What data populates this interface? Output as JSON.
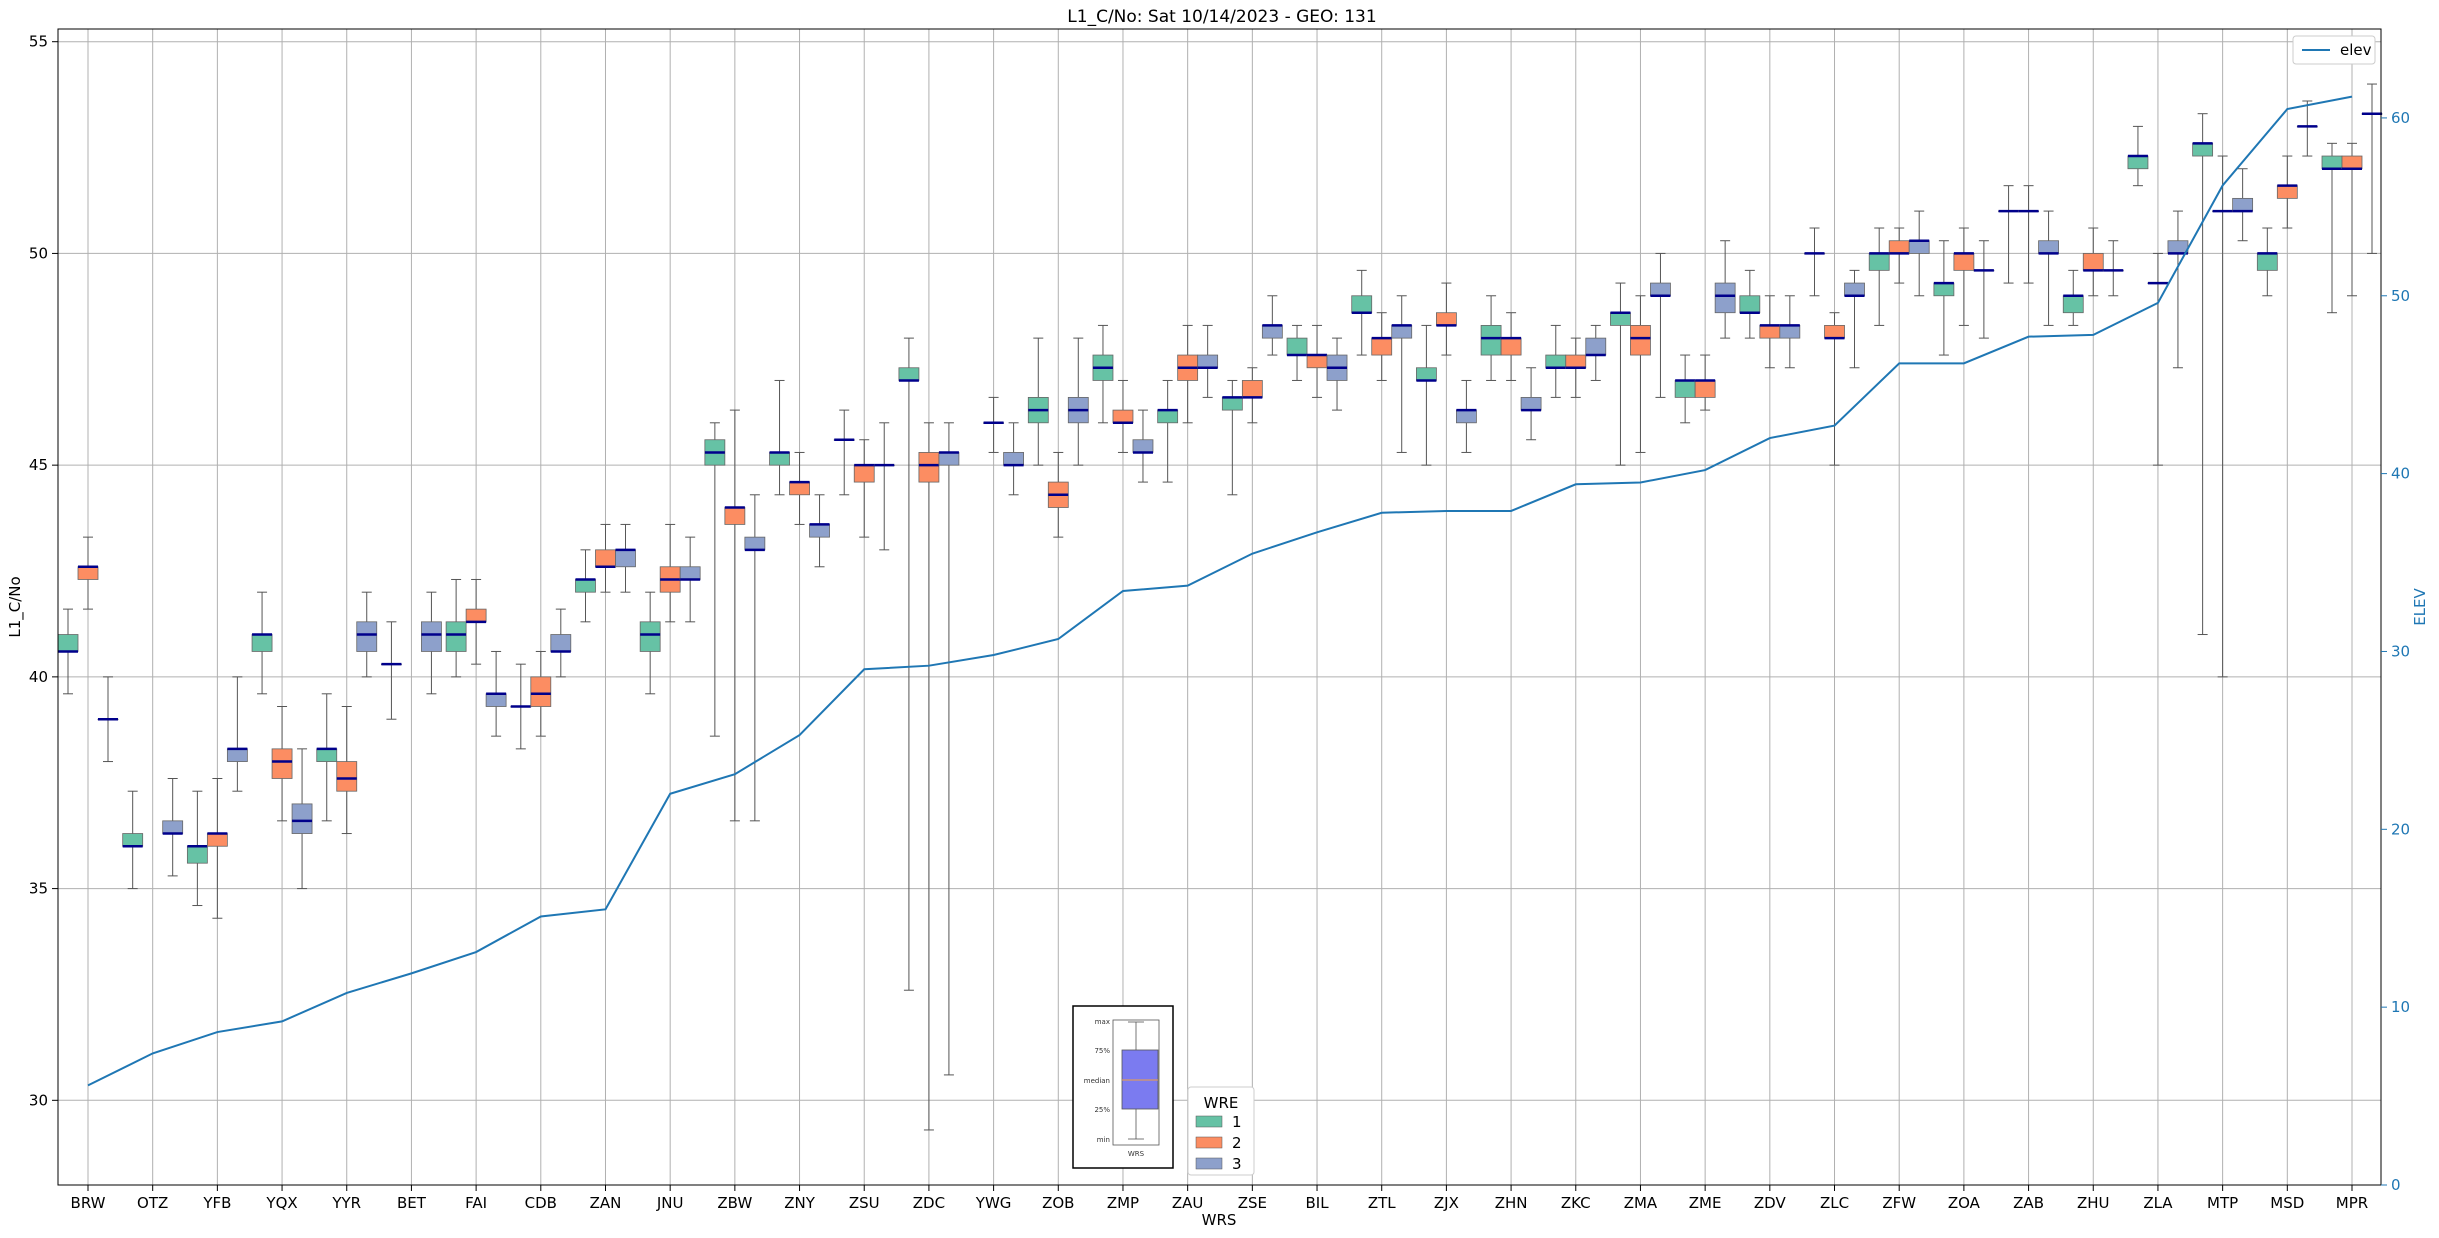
{
  "chart_data": {
    "type": "box",
    "title": "L1_C/No: Sat 10/14/2023 - GEO: 131",
    "xlabel": "WRS",
    "ylabel": "L1_C/No",
    "y2label": "ELEV",
    "ylim": [
      28,
      55.3
    ],
    "y2lim": [
      0,
      65
    ],
    "yticks": [
      30,
      35,
      40,
      45,
      50,
      55
    ],
    "y2ticks": [
      0,
      10,
      20,
      30,
      40,
      50,
      60
    ],
    "grid": true,
    "categories": [
      "BRW",
      "OTZ",
      "YFB",
      "YQX",
      "YYR",
      "BET",
      "FAI",
      "CDB",
      "ZAN",
      "JNU",
      "ZBW",
      "ZNY",
      "ZSU",
      "ZDC",
      "YWG",
      "ZOB",
      "ZMP",
      "ZAU",
      "ZSE",
      "BIL",
      "ZTL",
      "ZJX",
      "ZHN",
      "ZKC",
      "ZMA",
      "ZME",
      "ZDV",
      "ZLC",
      "ZFW",
      "ZOA",
      "ZAB",
      "ZHU",
      "ZLA",
      "MTP",
      "MSD",
      "MPR"
    ],
    "legend_wre": {
      "title": "WRE",
      "placement": "bottom-center",
      "entries": [
        {
          "label": "1",
          "color": "#66c2a5"
        },
        {
          "label": "2",
          "color": "#fc8d62"
        },
        {
          "label": "3",
          "color": "#8da0cb"
        }
      ]
    },
    "legend_elev": {
      "label": "elev",
      "color": "#1f77b4",
      "placement": "top-right"
    },
    "inset_key": {
      "labels": [
        "max",
        "75%",
        "median",
        "25%",
        "min"
      ],
      "xlabel": "WRS",
      "color": "#7b7bf0"
    },
    "boxes": [
      {
        "cat": "BRW",
        "wre": 1,
        "min": 39.6,
        "q1": 40.6,
        "med": 40.6,
        "q3": 41.0,
        "max": 41.6
      },
      {
        "cat": "BRW",
        "wre": 2,
        "min": 41.6,
        "q1": 42.3,
        "med": 42.6,
        "q3": 42.6,
        "max": 43.3
      },
      {
        "cat": "BRW",
        "wre": 3,
        "min": 38.0,
        "q1": 39.0,
        "med": 39.0,
        "q3": 39.0,
        "max": 40.0
      },
      {
        "cat": "OTZ",
        "wre": 1,
        "min": 35.0,
        "q1": 36.0,
        "med": 36.0,
        "q3": 36.3,
        "max": 37.3
      },
      {
        "cat": "OTZ",
        "wre": 3,
        "min": 35.3,
        "q1": 36.3,
        "med": 36.3,
        "q3": 36.6,
        "max": 37.6
      },
      {
        "cat": "YFB",
        "wre": 1,
        "min": 34.6,
        "q1": 35.6,
        "med": 36.0,
        "q3": 36.0,
        "max": 37.3
      },
      {
        "cat": "YFB",
        "wre": 2,
        "min": 34.3,
        "q1": 36.0,
        "med": 36.3,
        "q3": 36.3,
        "max": 37.6
      },
      {
        "cat": "YFB",
        "wre": 3,
        "min": 37.3,
        "q1": 38.0,
        "med": 38.3,
        "q3": 38.3,
        "max": 40.0
      },
      {
        "cat": "YQX",
        "wre": 1,
        "min": 39.6,
        "q1": 40.6,
        "med": 41.0,
        "q3": 41.0,
        "max": 42.0
      },
      {
        "cat": "YQX",
        "wre": 2,
        "min": 36.6,
        "q1": 37.6,
        "med": 38.0,
        "q3": 38.3,
        "max": 39.3
      },
      {
        "cat": "YQX",
        "wre": 3,
        "min": 35.0,
        "q1": 36.3,
        "med": 36.6,
        "q3": 37.0,
        "max": 38.3
      },
      {
        "cat": "YYR",
        "wre": 1,
        "min": 36.6,
        "q1": 38.0,
        "med": 38.3,
        "q3": 38.3,
        "max": 39.6
      },
      {
        "cat": "YYR",
        "wre": 2,
        "min": 36.3,
        "q1": 37.3,
        "med": 37.6,
        "q3": 38.0,
        "max": 39.3
      },
      {
        "cat": "YYR",
        "wre": 3,
        "min": 40.0,
        "q1": 40.6,
        "med": 41.0,
        "q3": 41.3,
        "max": 42.0
      },
      {
        "cat": "BET",
        "wre": 1,
        "min": 39.0,
        "q1": 40.3,
        "med": 40.3,
        "q3": 40.3,
        "max": 41.3
      },
      {
        "cat": "BET",
        "wre": 3,
        "min": 39.6,
        "q1": 40.6,
        "med": 41.0,
        "q3": 41.3,
        "max": 42.0
      },
      {
        "cat": "FAI",
        "wre": 1,
        "min": 40.0,
        "q1": 40.6,
        "med": 41.0,
        "q3": 41.3,
        "max": 42.3
      },
      {
        "cat": "FAI",
        "wre": 2,
        "min": 40.3,
        "q1": 41.3,
        "med": 41.3,
        "q3": 41.6,
        "max": 42.3
      },
      {
        "cat": "FAI",
        "wre": 3,
        "min": 38.6,
        "q1": 39.3,
        "med": 39.6,
        "q3": 39.6,
        "max": 40.6
      },
      {
        "cat": "CDB",
        "wre": 1,
        "min": 38.3,
        "q1": 39.3,
        "med": 39.3,
        "q3": 39.3,
        "max": 40.3
      },
      {
        "cat": "CDB",
        "wre": 2,
        "min": 38.6,
        "q1": 39.3,
        "med": 39.6,
        "q3": 40.0,
        "max": 40.6
      },
      {
        "cat": "CDB",
        "wre": 3,
        "min": 40.0,
        "q1": 40.6,
        "med": 40.6,
        "q3": 41.0,
        "max": 41.6
      },
      {
        "cat": "ZAN",
        "wre": 1,
        "min": 41.3,
        "q1": 42.0,
        "med": 42.3,
        "q3": 42.3,
        "max": 43.0
      },
      {
        "cat": "ZAN",
        "wre": 2,
        "min": 42.0,
        "q1": 42.6,
        "med": 42.6,
        "q3": 43.0,
        "max": 43.6
      },
      {
        "cat": "ZAN",
        "wre": 3,
        "min": 42.0,
        "q1": 42.6,
        "med": 43.0,
        "q3": 43.0,
        "max": 43.6
      },
      {
        "cat": "JNU",
        "wre": 1,
        "min": 39.6,
        "q1": 40.6,
        "med": 41.0,
        "q3": 41.3,
        "max": 42.0
      },
      {
        "cat": "JNU",
        "wre": 2,
        "min": 41.3,
        "q1": 42.0,
        "med": 42.3,
        "q3": 42.6,
        "max": 43.6
      },
      {
        "cat": "JNU",
        "wre": 3,
        "min": 41.3,
        "q1": 42.3,
        "med": 42.3,
        "q3": 42.6,
        "max": 43.3
      },
      {
        "cat": "ZBW",
        "wre": 1,
        "min": 38.6,
        "q1": 45.0,
        "med": 45.3,
        "q3": 45.6,
        "max": 46.0
      },
      {
        "cat": "ZBW",
        "wre": 2,
        "min": 36.6,
        "q1": 43.6,
        "med": 44.0,
        "q3": 44.0,
        "max": 46.3
      },
      {
        "cat": "ZBW",
        "wre": 3,
        "min": 36.6,
        "q1": 43.0,
        "med": 43.0,
        "q3": 43.3,
        "max": 44.3
      },
      {
        "cat": "ZNY",
        "wre": 1,
        "min": 44.3,
        "q1": 45.0,
        "med": 45.3,
        "q3": 45.3,
        "max": 47.0
      },
      {
        "cat": "ZNY",
        "wre": 2,
        "min": 43.6,
        "q1": 44.3,
        "med": 44.6,
        "q3": 44.6,
        "max": 45.3
      },
      {
        "cat": "ZNY",
        "wre": 3,
        "min": 42.6,
        "q1": 43.3,
        "med": 43.6,
        "q3": 43.6,
        "max": 44.3
      },
      {
        "cat": "ZSU",
        "wre": 1,
        "min": 44.3,
        "q1": 45.6,
        "med": 45.6,
        "q3": 45.6,
        "max": 46.3
      },
      {
        "cat": "ZSU",
        "wre": 2,
        "min": 43.3,
        "q1": 44.6,
        "med": 45.0,
        "q3": 45.0,
        "max": 45.6
      },
      {
        "cat": "ZSU",
        "wre": 3,
        "min": 43.0,
        "q1": 45.0,
        "med": 45.0,
        "q3": 45.0,
        "max": 46.0
      },
      {
        "cat": "ZDC",
        "wre": 1,
        "min": 32.6,
        "q1": 47.0,
        "med": 47.0,
        "q3": 47.3,
        "max": 48.0
      },
      {
        "cat": "ZDC",
        "wre": 2,
        "min": 29.3,
        "q1": 44.6,
        "med": 45.0,
        "q3": 45.3,
        "max": 46.0
      },
      {
        "cat": "ZDC",
        "wre": 3,
        "min": 30.6,
        "q1": 45.0,
        "med": 45.3,
        "q3": 45.3,
        "max": 46.0
      },
      {
        "cat": "YWG",
        "wre": 2,
        "min": 45.3,
        "q1": 46.0,
        "med": 46.0,
        "q3": 46.0,
        "max": 46.6
      },
      {
        "cat": "YWG",
        "wre": 3,
        "min": 44.3,
        "q1": 45.0,
        "med": 45.0,
        "q3": 45.3,
        "max": 46.0
      },
      {
        "cat": "ZOB",
        "wre": 1,
        "min": 45.0,
        "q1": 46.0,
        "med": 46.3,
        "q3": 46.6,
        "max": 48.0
      },
      {
        "cat": "ZOB",
        "wre": 2,
        "min": 43.3,
        "q1": 44.0,
        "med": 44.3,
        "q3": 44.6,
        "max": 45.3
      },
      {
        "cat": "ZOB",
        "wre": 3,
        "min": 45.0,
        "q1": 46.0,
        "med": 46.3,
        "q3": 46.6,
        "max": 48.0
      },
      {
        "cat": "ZMP",
        "wre": 1,
        "min": 46.0,
        "q1": 47.0,
        "med": 47.3,
        "q3": 47.6,
        "max": 48.3
      },
      {
        "cat": "ZMP",
        "wre": 2,
        "min": 45.3,
        "q1": 46.0,
        "med": 46.0,
        "q3": 46.3,
        "max": 47.0
      },
      {
        "cat": "ZMP",
        "wre": 3,
        "min": 44.6,
        "q1": 45.3,
        "med": 45.3,
        "q3": 45.6,
        "max": 46.3
      },
      {
        "cat": "ZAU",
        "wre": 1,
        "min": 44.6,
        "q1": 46.0,
        "med": 46.3,
        "q3": 46.3,
        "max": 47.0
      },
      {
        "cat": "ZAU",
        "wre": 2,
        "min": 46.0,
        "q1": 47.0,
        "med": 47.3,
        "q3": 47.6,
        "max": 48.3
      },
      {
        "cat": "ZAU",
        "wre": 3,
        "min": 46.6,
        "q1": 47.3,
        "med": 47.3,
        "q3": 47.6,
        "max": 48.3
      },
      {
        "cat": "ZSE",
        "wre": 1,
        "min": 44.3,
        "q1": 46.3,
        "med": 46.6,
        "q3": 46.6,
        "max": 47.0
      },
      {
        "cat": "ZSE",
        "wre": 2,
        "min": 46.0,
        "q1": 46.6,
        "med": 46.6,
        "q3": 47.0,
        "max": 47.3
      },
      {
        "cat": "ZSE",
        "wre": 3,
        "min": 47.6,
        "q1": 48.0,
        "med": 48.3,
        "q3": 48.3,
        "max": 49.0
      },
      {
        "cat": "BIL",
        "wre": 1,
        "min": 47.0,
        "q1": 47.6,
        "med": 47.6,
        "q3": 48.0,
        "max": 48.3
      },
      {
        "cat": "BIL",
        "wre": 2,
        "min": 46.6,
        "q1": 47.3,
        "med": 47.6,
        "q3": 47.6,
        "max": 48.3
      },
      {
        "cat": "BIL",
        "wre": 3,
        "min": 46.3,
        "q1": 47.0,
        "med": 47.3,
        "q3": 47.6,
        "max": 48.0
      },
      {
        "cat": "ZTL",
        "wre": 1,
        "min": 47.6,
        "q1": 48.6,
        "med": 48.6,
        "q3": 49.0,
        "max": 49.6
      },
      {
        "cat": "ZTL",
        "wre": 2,
        "min": 47.0,
        "q1": 47.6,
        "med": 48.0,
        "q3": 48.0,
        "max": 48.6
      },
      {
        "cat": "ZTL",
        "wre": 3,
        "min": 45.3,
        "q1": 48.0,
        "med": 48.3,
        "q3": 48.3,
        "max": 49.0
      },
      {
        "cat": "ZJX",
        "wre": 1,
        "min": 45.0,
        "q1": 47.0,
        "med": 47.0,
        "q3": 47.3,
        "max": 48.3
      },
      {
        "cat": "ZJX",
        "wre": 2,
        "min": 47.6,
        "q1": 48.3,
        "med": 48.3,
        "q3": 48.6,
        "max": 49.3
      },
      {
        "cat": "ZJX",
        "wre": 3,
        "min": 45.3,
        "q1": 46.0,
        "med": 46.3,
        "q3": 46.3,
        "max": 47.0
      },
      {
        "cat": "ZHN",
        "wre": 1,
        "min": 47.0,
        "q1": 47.6,
        "med": 48.0,
        "q3": 48.3,
        "max": 49.0
      },
      {
        "cat": "ZHN",
        "wre": 2,
        "min": 47.0,
        "q1": 47.6,
        "med": 48.0,
        "q3": 48.0,
        "max": 48.6
      },
      {
        "cat": "ZHN",
        "wre": 3,
        "min": 45.6,
        "q1": 46.3,
        "med": 46.3,
        "q3": 46.6,
        "max": 47.3
      },
      {
        "cat": "ZKC",
        "wre": 1,
        "min": 46.6,
        "q1": 47.3,
        "med": 47.3,
        "q3": 47.6,
        "max": 48.3
      },
      {
        "cat": "ZKC",
        "wre": 2,
        "min": 46.6,
        "q1": 47.3,
        "med": 47.3,
        "q3": 47.6,
        "max": 48.0
      },
      {
        "cat": "ZKC",
        "wre": 3,
        "min": 47.0,
        "q1": 47.6,
        "med": 47.6,
        "q3": 48.0,
        "max": 48.3
      },
      {
        "cat": "ZMA",
        "wre": 1,
        "min": 45.0,
        "q1": 48.3,
        "med": 48.6,
        "q3": 48.6,
        "max": 49.3
      },
      {
        "cat": "ZMA",
        "wre": 2,
        "min": 45.3,
        "q1": 47.6,
        "med": 48.0,
        "q3": 48.3,
        "max": 49.0
      },
      {
        "cat": "ZMA",
        "wre": 3,
        "min": 46.6,
        "q1": 49.0,
        "med": 49.0,
        "q3": 49.3,
        "max": 50.0
      },
      {
        "cat": "ZME",
        "wre": 1,
        "min": 46.0,
        "q1": 46.6,
        "med": 47.0,
        "q3": 47.0,
        "max": 47.6
      },
      {
        "cat": "ZME",
        "wre": 2,
        "min": 46.3,
        "q1": 46.6,
        "med": 47.0,
        "q3": 47.0,
        "max": 47.6
      },
      {
        "cat": "ZME",
        "wre": 3,
        "min": 48.0,
        "q1": 48.6,
        "med": 49.0,
        "q3": 49.3,
        "max": 50.3
      },
      {
        "cat": "ZDV",
        "wre": 1,
        "min": 48.0,
        "q1": 48.6,
        "med": 48.6,
        "q3": 49.0,
        "max": 49.6
      },
      {
        "cat": "ZDV",
        "wre": 2,
        "min": 47.3,
        "q1": 48.0,
        "med": 48.3,
        "q3": 48.3,
        "max": 49.0
      },
      {
        "cat": "ZDV",
        "wre": 3,
        "min": 47.3,
        "q1": 48.0,
        "med": 48.3,
        "q3": 48.3,
        "max": 49.0
      },
      {
        "cat": "ZLC",
        "wre": 1,
        "min": 49.0,
        "q1": 50.0,
        "med": 50.0,
        "q3": 50.0,
        "max": 50.6
      },
      {
        "cat": "ZLC",
        "wre": 2,
        "min": 45.0,
        "q1": 48.0,
        "med": 48.0,
        "q3": 48.3,
        "max": 48.6
      },
      {
        "cat": "ZLC",
        "wre": 3,
        "min": 47.3,
        "q1": 49.0,
        "med": 49.0,
        "q3": 49.3,
        "max": 49.6
      },
      {
        "cat": "ZFW",
        "wre": 1,
        "min": 48.3,
        "q1": 49.6,
        "med": 50.0,
        "q3": 50.0,
        "max": 50.6
      },
      {
        "cat": "ZFW",
        "wre": 2,
        "min": 49.3,
        "q1": 50.0,
        "med": 50.0,
        "q3": 50.3,
        "max": 50.6
      },
      {
        "cat": "ZFW",
        "wre": 3,
        "min": 49.0,
        "q1": 50.0,
        "med": 50.3,
        "q3": 50.3,
        "max": 51.0
      },
      {
        "cat": "ZOA",
        "wre": 1,
        "min": 47.6,
        "q1": 49.0,
        "med": 49.3,
        "q3": 49.3,
        "max": 50.3
      },
      {
        "cat": "ZOA",
        "wre": 2,
        "min": 48.3,
        "q1": 49.6,
        "med": 50.0,
        "q3": 50.0,
        "max": 50.6
      },
      {
        "cat": "ZOA",
        "wre": 3,
        "min": 48.0,
        "q1": 49.6,
        "med": 49.6,
        "q3": 49.6,
        "max": 50.3
      },
      {
        "cat": "ZAB",
        "wre": 1,
        "min": 49.3,
        "q1": 51.0,
        "med": 51.0,
        "q3": 51.0,
        "max": 51.6
      },
      {
        "cat": "ZAB",
        "wre": 2,
        "min": 49.3,
        "q1": 51.0,
        "med": 51.0,
        "q3": 51.0,
        "max": 51.6
      },
      {
        "cat": "ZAB",
        "wre": 3,
        "min": 48.3,
        "q1": 50.0,
        "med": 50.0,
        "q3": 50.3,
        "max": 51.0
      },
      {
        "cat": "ZHU",
        "wre": 1,
        "min": 48.3,
        "q1": 48.6,
        "med": 49.0,
        "q3": 49.0,
        "max": 49.6
      },
      {
        "cat": "ZHU",
        "wre": 2,
        "min": 49.0,
        "q1": 49.6,
        "med": 49.6,
        "q3": 50.0,
        "max": 50.6
      },
      {
        "cat": "ZHU",
        "wre": 3,
        "min": 49.0,
        "q1": 49.6,
        "med": 49.6,
        "q3": 49.6,
        "max": 50.3
      },
      {
        "cat": "ZLA",
        "wre": 1,
        "min": 51.6,
        "q1": 52.0,
        "med": 52.3,
        "q3": 52.3,
        "max": 53.0
      },
      {
        "cat": "ZLA",
        "wre": 2,
        "min": 45.0,
        "q1": 49.3,
        "med": 49.3,
        "q3": 49.3,
        "max": 50.0
      },
      {
        "cat": "ZLA",
        "wre": 3,
        "min": 47.3,
        "q1": 50.0,
        "med": 50.0,
        "q3": 50.3,
        "max": 51.0
      },
      {
        "cat": "MTP",
        "wre": 1,
        "min": 41.0,
        "q1": 52.3,
        "med": 52.6,
        "q3": 52.6,
        "max": 53.3
      },
      {
        "cat": "MTP",
        "wre": 2,
        "min": 40.0,
        "q1": 51.0,
        "med": 51.0,
        "q3": 51.0,
        "max": 52.3
      },
      {
        "cat": "MTP",
        "wre": 3,
        "min": 50.3,
        "q1": 51.0,
        "med": 51.0,
        "q3": 51.3,
        "max": 52.0
      },
      {
        "cat": "MSD",
        "wre": 1,
        "min": 49.0,
        "q1": 49.6,
        "med": 50.0,
        "q3": 50.0,
        "max": 50.6
      },
      {
        "cat": "MSD",
        "wre": 2,
        "min": 50.6,
        "q1": 51.3,
        "med": 51.6,
        "q3": 51.6,
        "max": 52.3
      },
      {
        "cat": "MSD",
        "wre": 3,
        "min": 52.3,
        "q1": 53.0,
        "med": 53.0,
        "q3": 53.0,
        "max": 53.6
      },
      {
        "cat": "MPR",
        "wre": 1,
        "min": 48.6,
        "q1": 52.0,
        "med": 52.0,
        "q3": 52.3,
        "max": 52.6
      },
      {
        "cat": "MPR",
        "wre": 2,
        "min": 49.0,
        "q1": 52.0,
        "med": 52.0,
        "q3": 52.3,
        "max": 52.6
      },
      {
        "cat": "MPR",
        "wre": 3,
        "min": 50.0,
        "q1": 53.3,
        "med": 53.3,
        "q3": 53.3,
        "max": 54.0
      }
    ],
    "elev_series": {
      "name": "elev",
      "values": [
        5.6,
        7.4,
        8.6,
        9.2,
        10.8,
        11.9,
        13.1,
        15.1,
        15.5,
        22.0,
        23.1,
        25.3,
        29.0,
        29.2,
        29.8,
        30.7,
        33.4,
        33.7,
        35.5,
        36.7,
        37.8,
        37.9,
        37.9,
        39.4,
        39.5,
        40.2,
        42.0,
        42.7,
        46.2,
        46.2,
        47.7,
        47.8,
        49.6,
        56.2,
        60.5,
        61.2
      ]
    }
  }
}
